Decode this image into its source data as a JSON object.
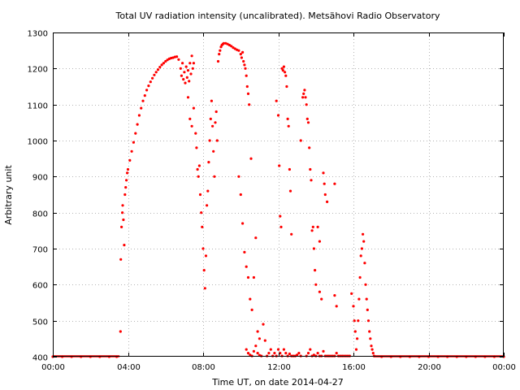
{
  "chart_data": {
    "type": "scatter",
    "title": "Total UV radiation intensity (uncalibrated). Metsähovi Radio Observatory",
    "xlabel": "Time UT, on date 2014-04-27",
    "ylabel": "Arbitrary unit",
    "xlim": [
      0,
      24
    ],
    "ylim": [
      400,
      1300
    ],
    "x_ticks": [
      {
        "value": 0,
        "label": "00:00"
      },
      {
        "value": 4,
        "label": "04:00"
      },
      {
        "value": 8,
        "label": "08:00"
      },
      {
        "value": 12,
        "label": "12:00"
      },
      {
        "value": 16,
        "label": "16:00"
      },
      {
        "value": 20,
        "label": "20:00"
      },
      {
        "value": 24,
        "label": "00:00"
      }
    ],
    "y_ticks": [
      400,
      500,
      600,
      700,
      800,
      900,
      1000,
      1100,
      1200,
      1300
    ],
    "grid": true,
    "legend": "none",
    "series_color": "#ff0000",
    "points": [
      [
        0.0,
        400
      ],
      [
        0.5,
        400
      ],
      [
        1.0,
        400
      ],
      [
        1.5,
        400
      ],
      [
        2.0,
        400
      ],
      [
        2.5,
        400
      ],
      [
        3.0,
        400
      ],
      [
        3.4,
        400
      ],
      [
        3.6,
        470
      ],
      [
        3.62,
        670
      ],
      [
        3.66,
        760
      ],
      [
        3.7,
        800
      ],
      [
        3.72,
        820
      ],
      [
        3.76,
        780
      ],
      [
        3.8,
        710
      ],
      [
        3.84,
        850
      ],
      [
        3.88,
        870
      ],
      [
        3.92,
        890
      ],
      [
        3.96,
        910
      ],
      [
        4.0,
        920
      ],
      [
        4.1,
        945
      ],
      [
        4.2,
        970
      ],
      [
        4.3,
        995
      ],
      [
        4.4,
        1020
      ],
      [
        4.5,
        1045
      ],
      [
        4.6,
        1070
      ],
      [
        4.7,
        1090
      ],
      [
        4.8,
        1110
      ],
      [
        4.9,
        1125
      ],
      [
        5.0,
        1140
      ],
      [
        5.1,
        1152
      ],
      [
        5.2,
        1163
      ],
      [
        5.3,
        1173
      ],
      [
        5.4,
        1182
      ],
      [
        5.5,
        1190
      ],
      [
        5.6,
        1197
      ],
      [
        5.7,
        1204
      ],
      [
        5.8,
        1210
      ],
      [
        5.9,
        1215
      ],
      [
        6.0,
        1220
      ],
      [
        6.1,
        1224
      ],
      [
        6.2,
        1227
      ],
      [
        6.3,
        1229
      ],
      [
        6.4,
        1230
      ],
      [
        6.5,
        1232
      ],
      [
        6.6,
        1233
      ],
      [
        6.7,
        1225
      ],
      [
        6.8,
        1200
      ],
      [
        6.85,
        1180
      ],
      [
        6.9,
        1215
      ],
      [
        6.95,
        1170
      ],
      [
        7.0,
        1190
      ],
      [
        7.05,
        1160
      ],
      [
        7.1,
        1205
      ],
      [
        7.15,
        1175
      ],
      [
        7.2,
        1195
      ],
      [
        7.25,
        1165
      ],
      [
        7.3,
        1215
      ],
      [
        7.35,
        1185
      ],
      [
        7.4,
        1235
      ],
      [
        7.45,
        1200
      ],
      [
        7.5,
        1215
      ],
      [
        7.2,
        1120
      ],
      [
        7.3,
        1060
      ],
      [
        7.4,
        1040
      ],
      [
        7.5,
        1090
      ],
      [
        7.6,
        1020
      ],
      [
        7.65,
        980
      ],
      [
        7.7,
        920
      ],
      [
        7.75,
        900
      ],
      [
        7.8,
        930
      ],
      [
        7.85,
        850
      ],
      [
        7.9,
        800
      ],
      [
        7.95,
        760
      ],
      [
        8.0,
        700
      ],
      [
        8.05,
        640
      ],
      [
        8.1,
        590
      ],
      [
        8.15,
        680
      ],
      [
        8.2,
        820
      ],
      [
        8.25,
        860
      ],
      [
        8.3,
        940
      ],
      [
        8.35,
        1000
      ],
      [
        8.4,
        1060
      ],
      [
        8.45,
        1110
      ],
      [
        8.5,
        1040
      ],
      [
        8.55,
        970
      ],
      [
        8.6,
        900
      ],
      [
        8.65,
        1050
      ],
      [
        8.7,
        1080
      ],
      [
        8.75,
        1000
      ],
      [
        8.8,
        1220
      ],
      [
        8.85,
        1240
      ],
      [
        8.9,
        1250
      ],
      [
        8.95,
        1260
      ],
      [
        9.0,
        1265
      ],
      [
        9.05,
        1268
      ],
      [
        9.1,
        1270
      ],
      [
        9.2,
        1270
      ],
      [
        9.3,
        1268
      ],
      [
        9.4,
        1265
      ],
      [
        9.5,
        1262
      ],
      [
        9.6,
        1258
      ],
      [
        9.7,
        1255
      ],
      [
        9.8,
        1252
      ],
      [
        9.9,
        1250
      ],
      [
        10.0,
        1240
      ],
      [
        10.05,
        1230
      ],
      [
        10.1,
        1245
      ],
      [
        10.15,
        1220
      ],
      [
        10.2,
        1210
      ],
      [
        10.25,
        1200
      ],
      [
        10.3,
        1180
      ],
      [
        10.35,
        1150
      ],
      [
        10.4,
        1130
      ],
      [
        10.45,
        1100
      ],
      [
        9.9,
        900
      ],
      [
        10.0,
        850
      ],
      [
        10.1,
        770
      ],
      [
        10.2,
        690
      ],
      [
        10.3,
        650
      ],
      [
        10.4,
        620
      ],
      [
        10.5,
        560
      ],
      [
        10.55,
        950
      ],
      [
        10.6,
        530
      ],
      [
        10.7,
        620
      ],
      [
        10.8,
        730
      ],
      [
        10.9,
        470
      ],
      [
        11.0,
        450
      ],
      [
        10.3,
        420
      ],
      [
        10.4,
        410
      ],
      [
        10.5,
        405
      ],
      [
        10.6,
        402
      ],
      [
        10.7,
        415
      ],
      [
        10.8,
        430
      ],
      [
        10.9,
        410
      ],
      [
        11.0,
        404
      ],
      [
        11.1,
        402
      ],
      [
        11.2,
        490
      ],
      [
        11.3,
        445
      ],
      [
        11.4,
        402
      ],
      [
        11.5,
        410
      ],
      [
        11.6,
        420
      ],
      [
        11.7,
        402
      ],
      [
        11.8,
        410
      ],
      [
        11.9,
        402
      ],
      [
        11.9,
        1110
      ],
      [
        12.0,
        1070
      ],
      [
        12.05,
        930
      ],
      [
        12.1,
        790
      ],
      [
        12.15,
        760
      ],
      [
        12.2,
        1200
      ],
      [
        12.25,
        1195
      ],
      [
        12.3,
        1205
      ],
      [
        12.35,
        1190
      ],
      [
        12.4,
        1180
      ],
      [
        12.45,
        1150
      ],
      [
        12.5,
        1060
      ],
      [
        12.55,
        1040
      ],
      [
        12.6,
        920
      ],
      [
        12.65,
        860
      ],
      [
        12.7,
        740
      ],
      [
        12.0,
        420
      ],
      [
        12.1,
        410
      ],
      [
        12.2,
        402
      ],
      [
        12.3,
        420
      ],
      [
        12.4,
        410
      ],
      [
        12.5,
        402
      ],
      [
        12.6,
        408
      ],
      [
        12.7,
        402
      ],
      [
        12.8,
        402
      ],
      [
        12.9,
        402
      ],
      [
        13.0,
        405
      ],
      [
        13.1,
        410
      ],
      [
        13.2,
        402
      ],
      [
        13.2,
        1000
      ],
      [
        13.3,
        1120
      ],
      [
        13.35,
        1130
      ],
      [
        13.4,
        1140
      ],
      [
        13.45,
        1120
      ],
      [
        13.5,
        1100
      ],
      [
        13.55,
        1060
      ],
      [
        13.6,
        1050
      ],
      [
        13.65,
        980
      ],
      [
        13.7,
        920
      ],
      [
        13.75,
        890
      ],
      [
        13.8,
        750
      ],
      [
        13.85,
        760
      ],
      [
        13.9,
        700
      ],
      [
        13.95,
        640
      ],
      [
        14.0,
        600
      ],
      [
        14.1,
        760
      ],
      [
        14.2,
        720
      ],
      [
        13.5,
        402
      ],
      [
        13.6,
        410
      ],
      [
        13.7,
        420
      ],
      [
        13.8,
        402
      ],
      [
        13.9,
        405
      ],
      [
        14.0,
        402
      ],
      [
        14.1,
        410
      ],
      [
        14.2,
        402
      ],
      [
        14.3,
        402
      ],
      [
        14.4,
        415
      ],
      [
        14.5,
        402
      ],
      [
        14.6,
        402
      ],
      [
        14.7,
        402
      ],
      [
        14.8,
        402
      ],
      [
        14.9,
        402
      ],
      [
        15.0,
        402
      ],
      [
        15.1,
        410
      ],
      [
        15.2,
        402
      ],
      [
        15.3,
        402
      ],
      [
        15.4,
        402
      ],
      [
        15.5,
        402
      ],
      [
        15.6,
        402
      ],
      [
        15.7,
        402
      ],
      [
        15.8,
        402
      ],
      [
        14.4,
        910
      ],
      [
        14.45,
        880
      ],
      [
        14.5,
        850
      ],
      [
        14.6,
        830
      ],
      [
        14.2,
        580
      ],
      [
        14.3,
        560
      ],
      [
        15.0,
        880
      ],
      [
        15.0,
        570
      ],
      [
        15.1,
        540
      ],
      [
        15.9,
        575
      ],
      [
        16.0,
        540
      ],
      [
        16.05,
        500
      ],
      [
        16.1,
        470
      ],
      [
        16.15,
        420
      ],
      [
        16.2,
        450
      ],
      [
        16.25,
        500
      ],
      [
        16.3,
        560
      ],
      [
        16.35,
        620
      ],
      [
        16.4,
        680
      ],
      [
        16.45,
        700
      ],
      [
        16.5,
        740
      ],
      [
        16.55,
        720
      ],
      [
        16.6,
        660
      ],
      [
        16.65,
        600
      ],
      [
        16.7,
        560
      ],
      [
        16.75,
        530
      ],
      [
        16.8,
        500
      ],
      [
        16.85,
        470
      ],
      [
        16.9,
        450
      ],
      [
        16.95,
        430
      ],
      [
        17.0,
        420
      ],
      [
        17.05,
        410
      ],
      [
        17.1,
        402
      ],
      [
        17.5,
        400
      ],
      [
        18.0,
        400
      ],
      [
        18.5,
        400
      ],
      [
        19.0,
        400
      ],
      [
        19.5,
        400
      ],
      [
        20.0,
        400
      ],
      [
        20.5,
        400
      ],
      [
        21.0,
        400
      ],
      [
        21.5,
        400
      ],
      [
        22.0,
        400
      ],
      [
        22.5,
        400
      ],
      [
        23.0,
        400
      ],
      [
        23.5,
        400
      ],
      [
        24.0,
        400
      ]
    ]
  }
}
